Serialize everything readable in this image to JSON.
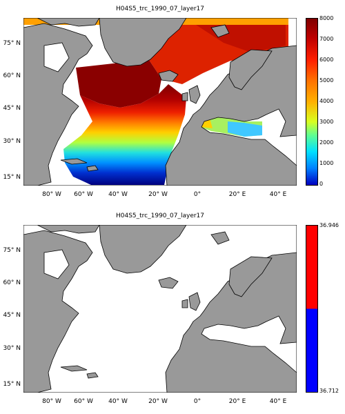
{
  "panels": [
    {
      "title": "H04S5_trc_1990_07_layer17",
      "colorbar": {
        "type": "continuous",
        "ticks": [
          "8000",
          "7000",
          "6000",
          "5000",
          "4000",
          "3000",
          "2000",
          "1000",
          "0"
        ],
        "range": [
          0,
          8000
        ],
        "colormap": "jet"
      }
    },
    {
      "title": "H04S5_trc_1990_07_layer17",
      "colorbar": {
        "type": "two-color",
        "top_label": "36.946",
        "bottom_label": "36.712",
        "colors": [
          "#ff0000",
          "#0000ff"
        ]
      }
    }
  ],
  "axes": {
    "lat_labels": [
      "75° N",
      "60° N",
      "45° N",
      "30° N",
      "15° N"
    ],
    "lon_labels": [
      "80° W",
      "60° W",
      "40° W",
      "20° W",
      "0°",
      "20° E",
      "40° E"
    ],
    "lat_range": [
      10,
      88
    ],
    "lon_range": [
      -90,
      50
    ]
  },
  "colors": {
    "land": "#999999",
    "ocean_empty": "#ffffff",
    "coast": "#000000"
  }
}
